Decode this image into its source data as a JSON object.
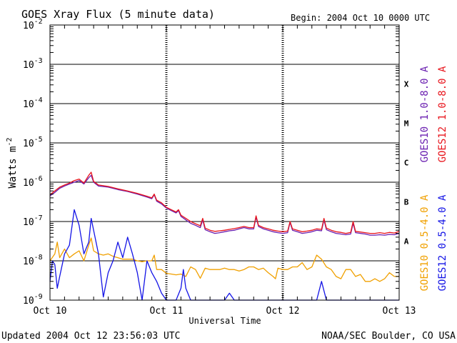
{
  "chart_data": {
    "type": "line",
    "title": "GOES Xray Flux (5 minute data)",
    "begin_label": "Begin:  2004 Oct 10 0000 UTC",
    "xlabel": "Universal Time",
    "ylabel": "Watts m",
    "ylabel_superscript": "-2",
    "xlim": [
      "2004-10-10 00:00",
      "2004-10-13 00:00"
    ],
    "x_ticks": [
      {
        "x": "2004-10-10 00:00",
        "label": "Oct 10"
      },
      {
        "x": "2004-10-11 00:00",
        "label": "Oct 11"
      },
      {
        "x": "2004-10-12 00:00",
        "label": "Oct 12"
      },
      {
        "x": "2004-10-13 00:00",
        "label": "Oct 13"
      }
    ],
    "y_scale": "log",
    "ylim": [
      1e-09,
      0.01
    ],
    "y_ticks": [
      {
        "value": 1e-09,
        "base": "10",
        "exp": "-9"
      },
      {
        "value": 1e-08,
        "base": "10",
        "exp": "-8"
      },
      {
        "value": 1e-07,
        "base": "10",
        "exp": "-7"
      },
      {
        "value": 1e-06,
        "base": "10",
        "exp": "-6"
      },
      {
        "value": 1e-05,
        "base": "10",
        "exp": "-5"
      },
      {
        "value": 0.0001,
        "base": "10",
        "exp": "-4"
      },
      {
        "value": 0.001,
        "base": "10",
        "exp": "-3"
      },
      {
        "value": 0.01,
        "base": "10",
        "exp": "-2"
      }
    ],
    "flare_classes": [
      {
        "label": "A",
        "value": 3.16e-08
      },
      {
        "label": "B",
        "value": 3.16e-07
      },
      {
        "label": "C",
        "value": 3.16e-06
      },
      {
        "label": "M",
        "value": 3.16e-05
      },
      {
        "label": "X",
        "value": 0.000316
      }
    ],
    "grid": true,
    "legend": "right",
    "series": [
      {
        "name": "GOES10 1.0-8.0 A",
        "color": "#6a1fb0",
        "x_hours": [
          0,
          1,
          2,
          3,
          4,
          5,
          6,
          7,
          8,
          8.5,
          9,
          10,
          12,
          14,
          16,
          18,
          20,
          21,
          21.5,
          22,
          23,
          24,
          25,
          26,
          26.5,
          27,
          28,
          29,
          30,
          31,
          31.5,
          32,
          33,
          34,
          35,
          36,
          37,
          38,
          39,
          40,
          41,
          42,
          42.5,
          43,
          44,
          45,
          46,
          47,
          48,
          49,
          49.5,
          50,
          51,
          52,
          53,
          54,
          55,
          56,
          56.5,
          57,
          58,
          59,
          60,
          61,
          62,
          62.5,
          63,
          64,
          65,
          66,
          67,
          68,
          69,
          70,
          71,
          72
        ],
        "values": [
          4.5e-07,
          5.5e-07,
          7e-07,
          8e-07,
          9e-07,
          1e-06,
          1.1e-06,
          9e-07,
          1.3e-06,
          1.5e-06,
          1e-06,
          8e-07,
          7.5e-07,
          6.5e-07,
          5.8e-07,
          5e-07,
          4.2e-07,
          3.8e-07,
          4.8e-07,
          3.3e-07,
          2.8e-07,
          2.2e-07,
          1.9e-07,
          1.65e-07,
          1.9e-07,
          1.35e-07,
          1.1e-07,
          9e-08,
          8e-08,
          7e-08,
          1.1e-07,
          6.2e-08,
          5.5e-08,
          5e-08,
          5.2e-08,
          5.5e-08,
          5.8e-08,
          6e-08,
          6.5e-08,
          7e-08,
          6.5e-08,
          6.5e-08,
          1.3e-07,
          7.5e-08,
          6.5e-08,
          6e-08,
          5.5e-08,
          5.2e-08,
          5e-08,
          5.2e-08,
          9.5e-08,
          6e-08,
          5.5e-08,
          5e-08,
          5.2e-08,
          5.5e-08,
          6e-08,
          5.8e-08,
          1.1e-07,
          6.2e-08,
          5.5e-08,
          5e-08,
          4.8e-08,
          4.6e-08,
          4.8e-08,
          9e-08,
          5.2e-08,
          5e-08,
          4.8e-08,
          4.5e-08,
          4.5e-08,
          4.6e-08,
          4.5e-08,
          4.7e-08,
          4.6e-08,
          5e-08
        ]
      },
      {
        "name": "GOES12 1.0-8.0 A",
        "color": "#e8141c",
        "x_hours": [
          0,
          1,
          2,
          3,
          4,
          5,
          6,
          7,
          8,
          8.5,
          9,
          10,
          12,
          14,
          16,
          18,
          20,
          21,
          21.5,
          22,
          23,
          24,
          25,
          26,
          26.5,
          27,
          28,
          29,
          30,
          31,
          31.5,
          32,
          33,
          34,
          35,
          36,
          37,
          38,
          39,
          40,
          41,
          42,
          42.5,
          43,
          44,
          45,
          46,
          47,
          48,
          49,
          49.5,
          50,
          51,
          52,
          53,
          54,
          55,
          56,
          56.5,
          57,
          58,
          59,
          60,
          61,
          62,
          62.5,
          63,
          64,
          65,
          66,
          67,
          68,
          69,
          70,
          71,
          72
        ],
        "values": [
          4.8e-07,
          6e-07,
          7.5e-07,
          8.5e-07,
          9.5e-07,
          1.1e-06,
          1.2e-06,
          9.5e-07,
          1.5e-06,
          1.8e-06,
          1.05e-06,
          8.5e-07,
          7.8e-07,
          6.8e-07,
          6e-07,
          5.2e-07,
          4.4e-07,
          4e-07,
          5e-07,
          3.5e-07,
          3e-07,
          2.3e-07,
          2e-07,
          1.75e-07,
          2e-07,
          1.45e-07,
          1.2e-07,
          1e-07,
          8.8e-08,
          7.8e-08,
          1.2e-07,
          6.8e-08,
          6e-08,
          5.6e-08,
          5.8e-08,
          6e-08,
          6.3e-08,
          6.6e-08,
          7e-08,
          7.5e-08,
          7e-08,
          7e-08,
          1.4e-07,
          8e-08,
          7e-08,
          6.5e-08,
          6e-08,
          5.7e-08,
          5.5e-08,
          5.7e-08,
          1e-07,
          6.5e-08,
          6e-08,
          5.5e-08,
          5.7e-08,
          6e-08,
          6.5e-08,
          6.3e-08,
          1.2e-07,
          6.8e-08,
          6e-08,
          5.5e-08,
          5.3e-08,
          5e-08,
          5.3e-08,
          1e-07,
          5.6e-08,
          5.4e-08,
          5.2e-08,
          5e-08,
          5e-08,
          5.2e-08,
          5e-08,
          5.3e-08,
          5.1e-08,
          5.6e-08
        ]
      },
      {
        "name": "GOES10 0.5-4.0 A",
        "color": "#f0a000",
        "x_hours": [
          0,
          1,
          1.5,
          2,
          3,
          4,
          5,
          6,
          7,
          8,
          8.5,
          9,
          10,
          11,
          12,
          13,
          14,
          15,
          16,
          17,
          18,
          19,
          20,
          21,
          21.5,
          22,
          23,
          24,
          25,
          26,
          27,
          28,
          29,
          30,
          31,
          32,
          33,
          34,
          35,
          36,
          37,
          38,
          39,
          40,
          41,
          42,
          43,
          44,
          45,
          46,
          46.5,
          47,
          48,
          49,
          50,
          51,
          52,
          53,
          54,
          55,
          56,
          57,
          58,
          59,
          60,
          61,
          62,
          63,
          64,
          65,
          66,
          67,
          68,
          69,
          70,
          71,
          72
        ],
        "values": [
          1e-08,
          1.5e-08,
          3e-08,
          1.2e-08,
          2e-08,
          1.2e-08,
          1.5e-08,
          1.8e-08,
          1e-08,
          2.5e-08,
          3.8e-08,
          1.8e-08,
          1.5e-08,
          1.4e-08,
          1.5e-08,
          1.3e-08,
          1.2e-08,
          1.1e-08,
          1.1e-08,
          1.1e-08,
          1e-08,
          9.5e-09,
          1e-08,
          1e-08,
          1.4e-08,
          6e-09,
          6e-09,
          4.8e-09,
          4.6e-09,
          4.4e-09,
          4.6e-09,
          4e-09,
          7e-09,
          6e-09,
          3.6e-09,
          6.5e-09,
          6e-09,
          6e-09,
          6e-09,
          6.5e-09,
          6e-09,
          6e-09,
          5.5e-09,
          6e-09,
          7e-09,
          7e-09,
          6e-09,
          6.5e-09,
          5e-09,
          4e-09,
          3.5e-09,
          6.5e-09,
          6e-09,
          6e-09,
          7e-09,
          7e-09,
          9e-09,
          6e-09,
          7e-09,
          1.4e-08,
          1.1e-08,
          7e-09,
          6e-09,
          4e-09,
          3.5e-09,
          6e-09,
          6e-09,
          4e-09,
          4.5e-09,
          3e-09,
          3e-09,
          3.5e-09,
          3e-09,
          3.5e-09,
          5e-09,
          4e-09,
          4e-09
        ]
      },
      {
        "name": "GOES12 0.5-4.0 A",
        "color": "#1414e6",
        "x_hours": [
          0,
          0.5,
          1,
          1.5,
          2,
          3,
          4,
          5,
          6,
          7,
          8,
          8.5,
          9,
          10,
          11,
          12,
          13,
          14,
          15,
          16,
          17,
          18,
          19,
          20,
          21,
          22,
          23,
          24,
          25,
          26,
          27,
          27.5,
          28,
          29,
          30,
          31,
          32,
          33,
          34,
          35,
          36,
          37,
          38,
          39,
          40,
          41,
          42,
          43,
          44,
          45,
          46,
          47,
          48,
          49,
          50,
          51,
          52,
          53,
          54,
          55,
          56,
          57,
          58,
          59,
          60,
          61,
          62,
          63,
          64,
          65,
          66,
          67,
          68,
          69,
          70,
          71,
          72
        ],
        "values": [
          3e-09,
          1e-08,
          8e-09,
          2e-09,
          4e-09,
          1.5e-08,
          2.5e-08,
          2e-07,
          8e-08,
          1.5e-08,
          3e-08,
          1.2e-07,
          6e-08,
          1.5e-08,
          1.2e-09,
          5e-09,
          1e-08,
          3e-08,
          1.2e-08,
          4e-08,
          1.5e-08,
          5e-09,
          1e-09,
          1e-08,
          5e-09,
          3e-09,
          1.5e-09,
          1e-09,
          1e-09,
          1e-09,
          2e-09,
          6e-09,
          2e-09,
          1e-09,
          1e-09,
          1e-09,
          1e-09,
          1e-09,
          1e-09,
          1e-09,
          1e-09,
          1.5e-09,
          1e-09,
          1e-09,
          1e-09,
          1e-09,
          1e-09,
          1e-09,
          1e-09,
          1e-09,
          1e-09,
          1e-09,
          1e-09,
          1e-09,
          1e-09,
          1e-09,
          1e-09,
          1e-09,
          1e-09,
          1e-09,
          3e-09,
          1e-09,
          1e-09,
          1e-09,
          1e-09,
          1e-09,
          1e-09,
          1e-09,
          1e-09,
          1e-09,
          1e-09,
          1e-09,
          1e-09,
          1e-09,
          1e-09,
          1e-09,
          1e-09
        ]
      }
    ]
  },
  "footer": {
    "updated": "Updated 2004 Oct 12 23:56:03 UTC",
    "source": "NOAA/SEC Boulder, CO USA"
  }
}
